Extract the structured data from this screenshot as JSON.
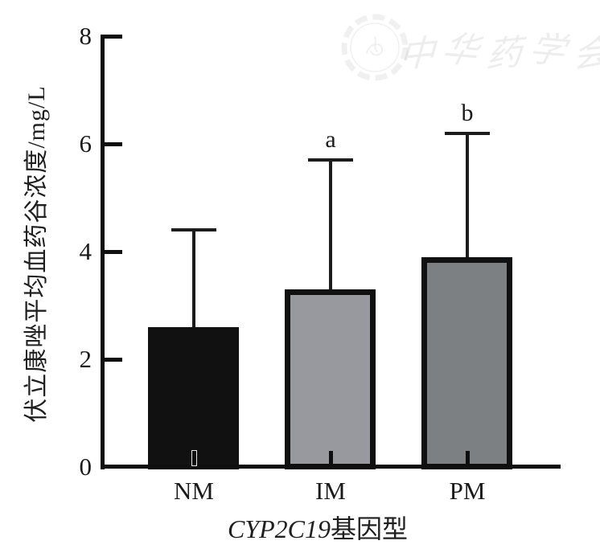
{
  "figure": {
    "background": "#ffffff",
    "text_color": "#1a1a1a",
    "axis_color": "#0f0f0f"
  },
  "watermark": {
    "text": "中华药学会",
    "chars": [
      "中",
      "华",
      "药",
      "学",
      "会"
    ],
    "seal": "scalloped-society-seal",
    "color": "#ededed"
  },
  "chart_data": {
    "type": "bar",
    "title": "",
    "categories": [
      "NM",
      "IM",
      "PM"
    ],
    "values": [
      2.6,
      3.3,
      3.9
    ],
    "errors_upper": [
      1.8,
      2.4,
      2.3
    ],
    "error_tops": [
      4.4,
      5.7,
      6.2
    ],
    "sig_labels": [
      "",
      "a",
      "b"
    ],
    "bar_colors": [
      "#111111",
      "#97999e",
      "#7d8083"
    ],
    "bar_border_color": "#111111",
    "ylabel": "伏立康唑平均血药谷浓度/mg/L",
    "xlabel_gene": "CYP2C19",
    "xlabel_rest": "基因型",
    "ylim": [
      0,
      8
    ],
    "yticks": [
      0,
      2,
      4,
      6,
      8
    ],
    "grid": false,
    "legend": "none",
    "error_bar_style": "upper-only-with-cap"
  }
}
